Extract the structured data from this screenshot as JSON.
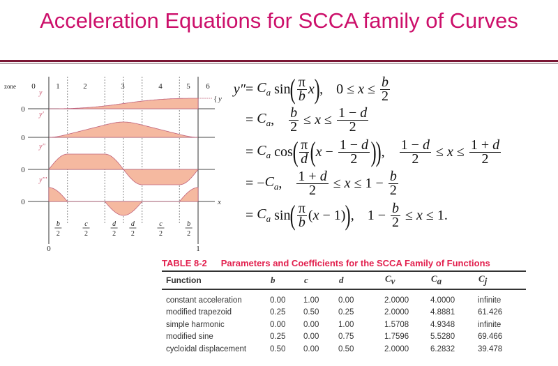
{
  "title": "Acceleration Equations for SCCA family of Curves",
  "diagram": {
    "zone_label": "zone",
    "zones": [
      "0",
      "1",
      "2",
      "3",
      "4",
      "5",
      "6"
    ],
    "curves": [
      "y",
      "y'",
      "y''",
      "y'''"
    ],
    "zero": "0",
    "x_axis": "x",
    "y_brace": "y",
    "segments": [
      [
        "b",
        "2"
      ],
      [
        "c",
        "2"
      ],
      [
        "d",
        "2"
      ],
      [
        "d",
        "2"
      ],
      [
        "c",
        "2"
      ],
      [
        "b",
        "2"
      ]
    ],
    "x_ticks": [
      "0",
      "1"
    ],
    "parameters": {
      "b": 0.25,
      "c": 0.5,
      "d": 0.25
    },
    "colors": {
      "fill": "#f5b9a0",
      "stroke": "#c0607a",
      "label": "#c9506a"
    }
  },
  "equations": {
    "lhs": "y″",
    "lines": [
      [
        {
          "t": "= "
        },
        {
          "v": "C",
          "sub": "a"
        },
        {
          "t": " sin"
        },
        {
          "p": "("
        },
        {
          "f": [
            "π",
            "b"
          ]
        },
        {
          "i": "x"
        },
        {
          "p": ")"
        },
        {
          "t": ", "
        },
        {
          "s": 1
        },
        {
          "t": "0 ≤ "
        },
        {
          "i": "x"
        },
        {
          "t": " ≤ "
        },
        {
          "f": [
            "b",
            "2"
          ]
        }
      ],
      [
        {
          "t": "= "
        },
        {
          "v": "C",
          "sub": "a"
        },
        {
          "t": ", "
        },
        {
          "s": 1
        },
        {
          "f": [
            "b",
            "2"
          ]
        },
        {
          "t": " ≤ "
        },
        {
          "i": "x"
        },
        {
          "t": " ≤ "
        },
        {
          "f": [
            "1 − d",
            "2"
          ]
        }
      ],
      [
        {
          "t": "= "
        },
        {
          "v": "C",
          "sub": "a"
        },
        {
          "t": " cos"
        },
        {
          "p": "("
        },
        {
          "f": [
            "π",
            "d"
          ]
        },
        {
          "p": "("
        },
        {
          "i": "x"
        },
        {
          "t": " − "
        },
        {
          "f": [
            "1 − d",
            "2"
          ]
        },
        {
          "p": ")"
        },
        {
          "p": ")"
        },
        {
          "t": ", "
        },
        {
          "s": 1
        },
        {
          "f": [
            "1 − d",
            "2"
          ]
        },
        {
          "t": " ≤ "
        },
        {
          "i": "x"
        },
        {
          "t": " ≤ "
        },
        {
          "f": [
            "1 + d",
            "2"
          ]
        }
      ],
      [
        {
          "t": "= −"
        },
        {
          "v": "C",
          "sub": "a"
        },
        {
          "t": ", "
        },
        {
          "s": 1
        },
        {
          "f": [
            "1 + d",
            "2"
          ]
        },
        {
          "t": " ≤ "
        },
        {
          "i": "x"
        },
        {
          "t": " ≤ 1 − "
        },
        {
          "f": [
            "b",
            "2"
          ]
        }
      ],
      [
        {
          "t": "= "
        },
        {
          "v": "C",
          "sub": "a"
        },
        {
          "t": " sin"
        },
        {
          "p": "("
        },
        {
          "f": [
            "π",
            "b"
          ]
        },
        {
          "t": "("
        },
        {
          "i": "x"
        },
        {
          "t": " − 1)"
        },
        {
          "p": ")"
        },
        {
          "t": ", "
        },
        {
          "s": 1
        },
        {
          "t": "1 − "
        },
        {
          "f": [
            "b",
            "2"
          ]
        },
        {
          "t": " ≤ "
        },
        {
          "i": "x"
        },
        {
          "t": " ≤ 1."
        }
      ]
    ]
  },
  "table": {
    "number": "TABLE  8-2",
    "caption": "Parameters and Coefficients for the SCCA Family of Functions",
    "headers": [
      "Function",
      "b",
      "c",
      "d",
      "Cv",
      "Ca",
      "Cj"
    ],
    "rows": [
      [
        "constant acceleration",
        "0.00",
        "1.00",
        "0.00",
        "2.0000",
        "4.0000",
        "infinite"
      ],
      [
        "modified trapezoid",
        "0.25",
        "0.50",
        "0.25",
        "2.0000",
        "4.8881",
        "61.426"
      ],
      [
        "simple harmonic",
        "0.00",
        "0.00",
        "1.00",
        "1.5708",
        "4.9348",
        "infinite"
      ],
      [
        "modified sine",
        "0.25",
        "0.00",
        "0.75",
        "1.7596",
        "5.5280",
        "69.466"
      ],
      [
        "cycloidal displacement",
        "0.50",
        "0.00",
        "0.50",
        "2.0000",
        "6.2832",
        "39.478"
      ]
    ]
  }
}
